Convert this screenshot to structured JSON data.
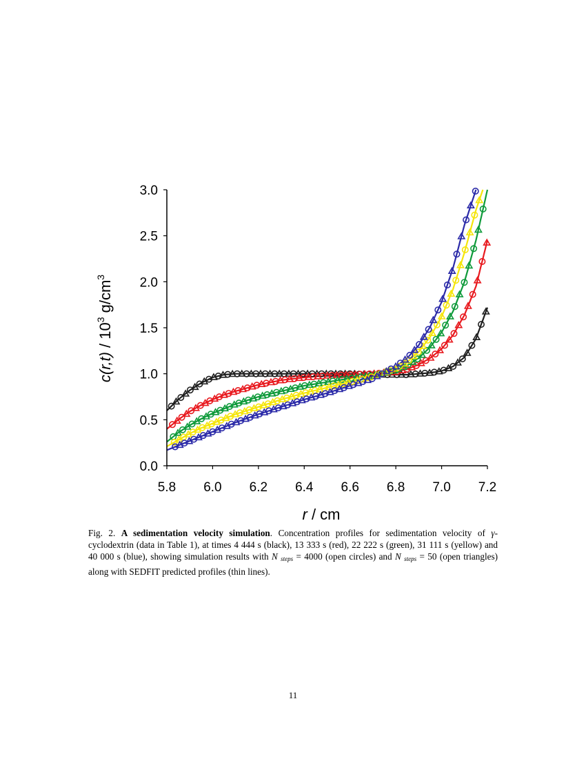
{
  "page": {
    "number": "11"
  },
  "caption": {
    "label": "Fig. 2.",
    "bold_title": "A sedimentation velocity simulation",
    "text_1": ". Concentration profiles for sedimentation velocity of ",
    "gamma": "γ",
    "text_2": "-cyclodextrin (data in Table 1), at times 4 444 s (black), 13 333 s (red), 22 222 s (green), 31 111 s (yellow) and 40 000 s (blue), showing simulation results with ",
    "n_symbol": "N",
    "steps_sub": "steps",
    "text_3": " = 4000 (open circles) and ",
    "text_4": " = 50 (open triangles) along with SEDFIT predicted profiles (thin lines)."
  },
  "chart_data": {
    "type": "scatter",
    "xlabel_italic": "r",
    "xlabel_rest": " / cm",
    "ylabel_parts": [
      "c(r,t)",
      " / 10",
      "3",
      " g/cm",
      "3"
    ],
    "xlim": [
      5.8,
      7.2
    ],
    "ylim": [
      0.0,
      3.0
    ],
    "x_ticks": [
      "5.8",
      "6.0",
      "6.2",
      "6.4",
      "6.6",
      "6.8",
      "7.0",
      "7.2"
    ],
    "y_ticks": [
      "0.0",
      "0.5",
      "1.0",
      "1.5",
      "2.0",
      "2.5",
      "3.0"
    ],
    "marker_types": [
      "circle",
      "triangle"
    ],
    "series": [
      {
        "color": "#1f1f1f",
        "time_s": 4444,
        "x": [
          5.8,
          5.85,
          5.9,
          5.95,
          6.0,
          6.05,
          6.1,
          6.2,
          6.3,
          6.4,
          6.5,
          6.6,
          6.7,
          6.8,
          6.85,
          6.9,
          6.95,
          7.0,
          7.05,
          7.1,
          7.15,
          7.2
        ],
        "y": [
          0.6,
          0.72,
          0.82,
          0.9,
          0.96,
          0.99,
          1.0,
          1.0,
          1.0,
          1.0,
          1.0,
          1.0,
          0.99,
          0.99,
          0.99,
          1.0,
          1.01,
          1.03,
          1.08,
          1.18,
          1.38,
          1.72
        ]
      },
      {
        "color": "#e8191e",
        "time_s": 13333,
        "x": [
          5.8,
          5.85,
          5.9,
          5.95,
          6.0,
          6.05,
          6.1,
          6.2,
          6.3,
          6.4,
          6.5,
          6.6,
          6.7,
          6.8,
          6.85,
          6.9,
          6.95,
          7.0,
          7.05,
          7.1,
          7.15,
          7.2
        ],
        "y": [
          0.4,
          0.5,
          0.59,
          0.66,
          0.72,
          0.77,
          0.81,
          0.88,
          0.93,
          0.96,
          0.98,
          0.99,
          1.0,
          1.02,
          1.05,
          1.1,
          1.17,
          1.27,
          1.42,
          1.64,
          1.95,
          2.45
        ]
      },
      {
        "color": "#0e9a3a",
        "time_s": 22222,
        "x": [
          5.8,
          5.85,
          5.9,
          5.95,
          6.0,
          6.05,
          6.1,
          6.2,
          6.3,
          6.4,
          6.5,
          6.6,
          6.7,
          6.8,
          6.85,
          6.9,
          6.95,
          7.0,
          7.05,
          7.1,
          7.15,
          7.2
        ],
        "y": [
          0.26,
          0.36,
          0.44,
          0.51,
          0.57,
          0.62,
          0.67,
          0.75,
          0.81,
          0.87,
          0.91,
          0.95,
          0.98,
          1.04,
          1.09,
          1.17,
          1.29,
          1.45,
          1.68,
          2.0,
          2.45,
          3.0
        ]
      },
      {
        "color": "#f5e50a",
        "time_s": 31111,
        "x": [
          5.8,
          5.85,
          5.9,
          5.95,
          6.0,
          6.05,
          6.1,
          6.2,
          6.3,
          6.4,
          6.5,
          6.6,
          6.7,
          6.8,
          6.85,
          6.9,
          6.95,
          7.0,
          7.05,
          7.1,
          7.15,
          7.18
        ],
        "y": [
          0.21,
          0.28,
          0.35,
          0.41,
          0.46,
          0.51,
          0.56,
          0.64,
          0.72,
          0.79,
          0.85,
          0.91,
          0.97,
          1.06,
          1.13,
          1.24,
          1.4,
          1.62,
          1.92,
          2.32,
          2.78,
          3.0
        ]
      },
      {
        "color": "#2b2aa8",
        "time_s": 40000,
        "x": [
          5.8,
          5.85,
          5.9,
          5.95,
          6.0,
          6.05,
          6.1,
          6.2,
          6.3,
          6.4,
          6.5,
          6.6,
          6.7,
          6.8,
          6.85,
          6.9,
          6.95,
          7.0,
          7.05,
          7.1,
          7.15
        ],
        "y": [
          0.17,
          0.22,
          0.27,
          0.32,
          0.37,
          0.42,
          0.47,
          0.56,
          0.64,
          0.72,
          0.79,
          0.87,
          0.95,
          1.08,
          1.17,
          1.31,
          1.51,
          1.78,
          2.15,
          2.62,
          3.0
        ]
      }
    ],
    "legend": "none",
    "grid": false
  }
}
